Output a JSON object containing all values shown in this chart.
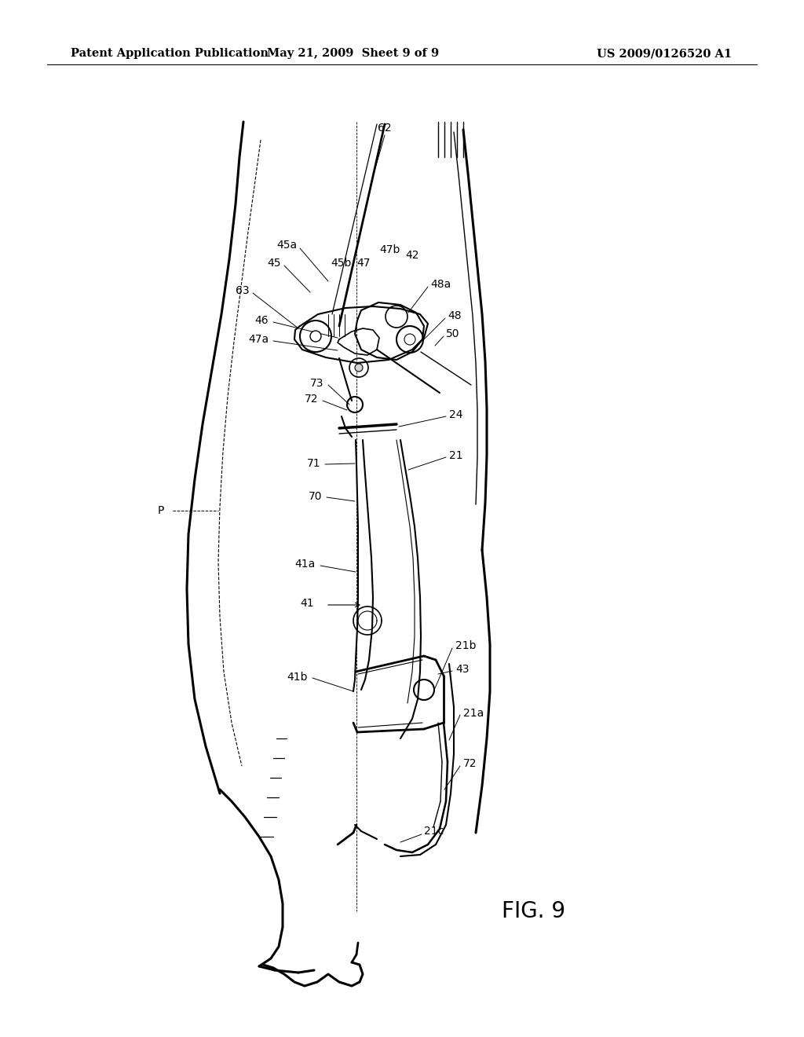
{
  "title_left": "Patent Application Publication",
  "title_center": "May 21, 2009  Sheet 9 of 9",
  "title_right": "US 2009/0126520 A1",
  "fig_label": "FIG. 9",
  "bg_color": "#ffffff",
  "line_color": "#000000",
  "header_fontsize": 10.5,
  "label_fontsize": 10,
  "fig_label_fontsize": 20
}
